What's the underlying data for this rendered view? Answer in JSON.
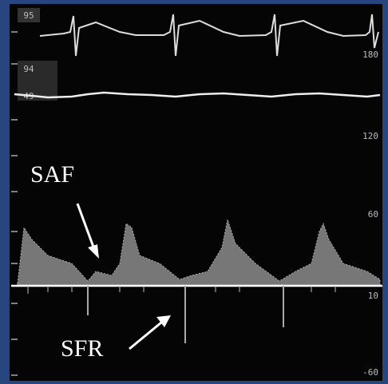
{
  "left_labels": [
    "95",
    "94",
    "49"
  ],
  "scale_labels": [
    "180",
    "120",
    "60",
    "10",
    "-60"
  ],
  "annotations": {
    "saf": "SAF",
    "sfr": "SFR"
  }
}
